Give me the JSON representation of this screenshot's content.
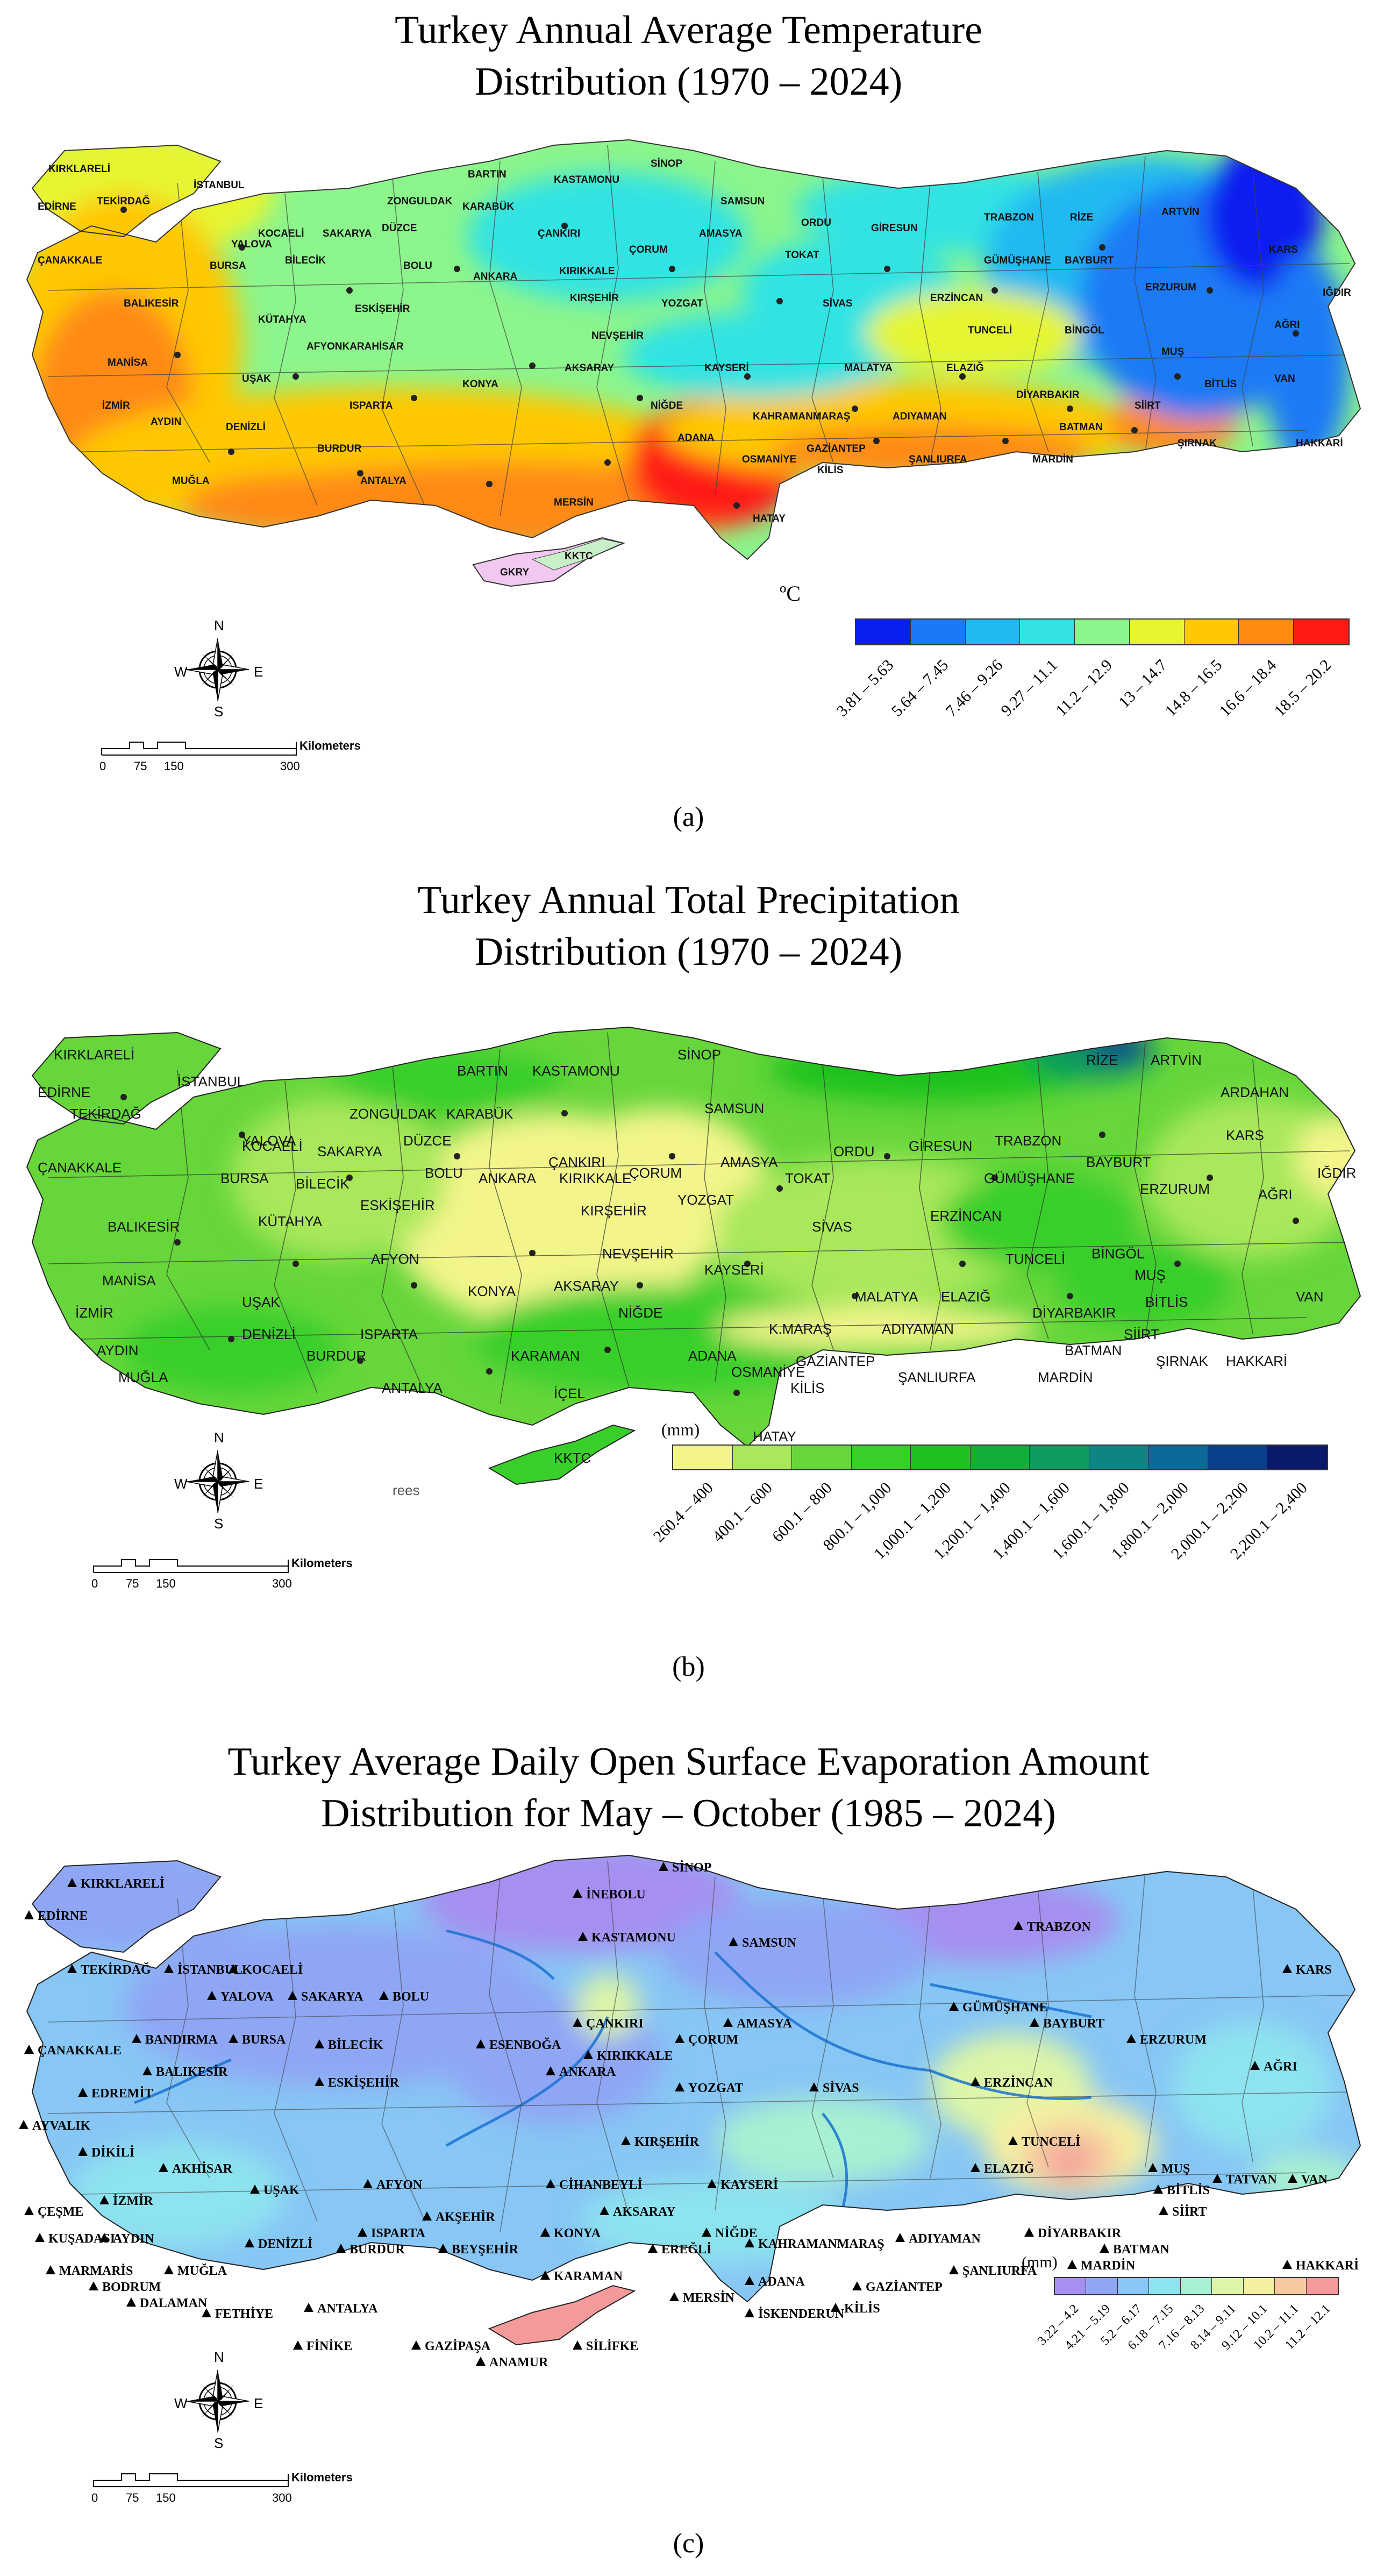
{
  "panels": [
    {
      "id": "a",
      "title_line1": "Turkey Annual Average Temperature",
      "title_line2": "Distribution (1970 – 2024)",
      "caption": "(a)",
      "legend_unit": "ºC",
      "legend_classes": [
        "3.81 – 5.63",
        "5.64 – 7.45",
        "7.46 – 9.26",
        "9.27 – 11.1",
        "11.2 – 12.9",
        "13 – 14.7",
        "14.8 – 16.5",
        "16.6 – 18.4",
        "18.5 – 20.2"
      ],
      "legend_colors": [
        "#0a1ef0",
        "#1a7af5",
        "#22b9f2",
        "#33e3e3",
        "#8cf58c",
        "#e6f532",
        "#ffc800",
        "#ff8a12",
        "#ff1a14"
      ],
      "places": [
        "KIRKLARELİ",
        "EDİRNE",
        "TEKİRDAĞ",
        "İSTANBUL",
        "ÇANAKKALE",
        "BALIKESİR",
        "MANİSA",
        "İZMİR",
        "AYDIN",
        "MUĞLA",
        "DENİZLİ",
        "UŞAK",
        "KÜTAHYA",
        "BURSA",
        "BİLECİK",
        "KOCAELİ",
        "SAKARYA",
        "DÜZCE",
        "BOLU",
        "ZONGULDAK",
        "BARTIN",
        "KARABÜK",
        "KASTAMONU",
        "SİNOP",
        "SAMSUN",
        "ÇANKIRI",
        "ÇORUM",
        "AMASYA",
        "ORDU",
        "GİRESUN",
        "TRABZON",
        "RİZE",
        "ARTVİN",
        "GÜMÜŞHANE",
        "BAYBURT",
        "ERZURUM",
        "KARS",
        "IĞDIR",
        "AĞRI",
        "TOKAT",
        "SİVAS",
        "ERZİNCAN",
        "TUNCELİ",
        "BİNGÖL",
        "MUŞ",
        "BİTLİS",
        "VAN",
        "HAKKARİ",
        "ŞIRNAK",
        "SİİRT",
        "BATMAN",
        "MARDİN",
        "DİYARBAKIR",
        "ELAZIĞ",
        "MALATYA",
        "ADIYAMAN",
        "ŞANLIURFA",
        "GAZİANTEP",
        "KİLİS",
        "HATAY",
        "OSMANİYE",
        "ADANA",
        "MERSİN",
        "KAHRAMANMARAŞ",
        "NİĞDE",
        "AKSARAY",
        "KAYSERİ",
        "NEVŞEHİR",
        "KIRŞEHİR",
        "YOZGAT",
        "KIRIKKALE",
        "ANKARA",
        "ESKİŞEHİR",
        "AFYONKARAHİSAR",
        "KONYA",
        "ISPARTA",
        "BURDUR",
        "ANTALYA",
        "KKTC",
        "GKRY",
        "YALOVA"
      ]
    },
    {
      "id": "b",
      "title_line1": "Turkey Annual Total Precipitation",
      "title_line2": "Distribution (1970 – 2024)",
      "caption": "(b)",
      "legend_unit": "(mm)",
      "legend_classes": [
        "260.4 – 400",
        "400.1 – 600",
        "600.1 – 800",
        "800.1 – 1,000",
        "1,000.1 – 1,200",
        "1,200.1 – 1,400",
        "1,400.1 – 1,600",
        "1,600.1 – 1,800",
        "1,800.1 – 2,000",
        "2,000.1 – 2,200",
        "2,200.1 – 2,400"
      ],
      "legend_colors": [
        "#f3f58a",
        "#a8e85a",
        "#66d63a",
        "#38cf2a",
        "#1fc21f",
        "#13ad3a",
        "#0f9a5e",
        "#0d8585",
        "#0c6a9a",
        "#0a3f8c",
        "#0a1a6b"
      ],
      "places": [
        "KIRKLARELİ",
        "EDİRNE",
        "TEKİRDAĞ",
        "İSTANBUL",
        "ÇANAKKALE",
        "BALIKESİR",
        "MANİSA",
        "İZMİR",
        "AYDIN",
        "MUĞLA",
        "DENİZLİ",
        "UŞAK",
        "KÜTAHYA",
        "BURSA",
        "BİLECİK",
        "KOCAELİ",
        "SAKARYA",
        "DÜZCE",
        "BOLU",
        "ZONGULDAK",
        "BARTIN",
        "KARABÜK",
        "KASTAMONU",
        "SİNOP",
        "SAMSUN",
        "ÇANKIRI",
        "ÇORUM",
        "AMASYA",
        "ORDU",
        "GİRESUN",
        "TRABZON",
        "RİZE",
        "ARTVİN",
        "ARDAHAN",
        "KARS",
        "IĞDIR",
        "AĞRI",
        "BAYBURT",
        "ERZURUM",
        "GÜMÜŞHANE",
        "TOKAT",
        "SİVAS",
        "ERZİNCAN",
        "TUNCELİ",
        "BİNGÖL",
        "MUŞ",
        "BİTLİS",
        "VAN",
        "HAKKARİ",
        "ŞIRNAK",
        "SİİRT",
        "BATMAN",
        "MARDİN",
        "DİYARBAKIR",
        "ELAZIĞ",
        "MALATYA",
        "ADIYAMAN",
        "ŞANLIURFA",
        "GAZİANTEP",
        "KİLİS",
        "HATAY",
        "OSMANİYE",
        "ADANA",
        "İÇEL",
        "KARAMAN",
        "K.MARAŞ",
        "NİĞDE",
        "AKSARAY",
        "KAYSERİ",
        "NEVŞEHİR",
        "KIRŞEHİR",
        "YOZGAT",
        "KIRIKKALE",
        "ANKARA",
        "ESKİŞEHİR",
        "AFYON",
        "KONYA",
        "ISPARTA",
        "BURDUR",
        "ANTALYA",
        "KKTC",
        "YALOVA",
        "rees"
      ]
    },
    {
      "id": "c",
      "title_line1": "Turkey Average Daily Open Surface Evaporation Amount",
      "title_line2": "Distribution for May – October (1985 – 2024)",
      "caption": "(c)",
      "legend_unit": "(mm)",
      "legend_classes": [
        "3.22 – 4.2",
        "4.21 – 5.19",
        "5.2 – 6.17",
        "6.18 – 7.15",
        "7.16 – 8.13",
        "8.14 – 9.11",
        "9.12 – 10.1",
        "10.2 – 11.1",
        "11.2 – 12.1"
      ],
      "legend_colors": [
        "#a68ff0",
        "#8fa6f5",
        "#87c6f5",
        "#8de3ef",
        "#a8f0d2",
        "#dcf5a8",
        "#f5f0a0",
        "#f5c8a0",
        "#f59a9a"
      ],
      "places": [
        "KIRKLARELİ",
        "EDİRNE",
        "TEKİRDAĞ",
        "İSTANBUL",
        "KOCAELİ",
        "YALOVA",
        "SAKARYA",
        "BOLU",
        "İNEBOLU",
        "SİNOP",
        "KASTAMONU",
        "SAMSUN",
        "TRABZON",
        "KARS",
        "ÇANAKKALE",
        "BANDIRMA",
        "BURSA",
        "BİLECİK",
        "ESENBOĞA",
        "ÇANKIRI",
        "ÇORUM",
        "AMASYA",
        "GÜMÜŞHANE",
        "BAYBURT",
        "ERZURUM",
        "AĞRI",
        "BALIKESİR",
        "EDREMİT",
        "ESKİŞEHİR",
        "ANKARA",
        "KIRIKKALE",
        "YOZGAT",
        "SİVAS",
        "ERZİNCAN",
        "AYVALIK",
        "DİKİLİ",
        "AKHİSAR",
        "KIRŞEHİR",
        "TUNCELİ",
        "ELAZIĞ",
        "MUŞ",
        "TATVAN",
        "VAN",
        "BİTLİS",
        "UŞAK",
        "AFYON",
        "CİHANBEYLİ",
        "KAYSERİ",
        "ÇEŞME",
        "İZMİR",
        "AKŞEHİR",
        "AKSARAY",
        "SİİRT",
        "KUŞADASI",
        "AYDIN",
        "DENİZLİ",
        "ISPARTA",
        "BURDUR",
        "KONYA",
        "BEYŞEHİR",
        "NİĞDE",
        "EREĞLİ",
        "KAHRAMANMARAŞ",
        "ADIYAMAN",
        "DİYARBAKIR",
        "BATMAN",
        "MARDİN",
        "HAKKARİ",
        "MARMARİS",
        "BODRUM",
        "MUĞLA",
        "KARAMAN",
        "ADANA",
        "MERSİN",
        "GAZİANTEP",
        "ŞANLIURFA",
        "DALAMAN",
        "FETHİYE",
        "ANTALYA",
        "İSKENDERUN",
        "KİLİS",
        "FİNİKE",
        "GAZİPAŞA",
        "SİLİFKE",
        "ANAMUR"
      ]
    }
  ],
  "compass": {
    "north": "N",
    "south": "S",
    "east": "E",
    "west": "W"
  },
  "scale": {
    "ticks": [
      "0",
      "75",
      "150",
      "300"
    ],
    "unit": "Kilometers"
  }
}
